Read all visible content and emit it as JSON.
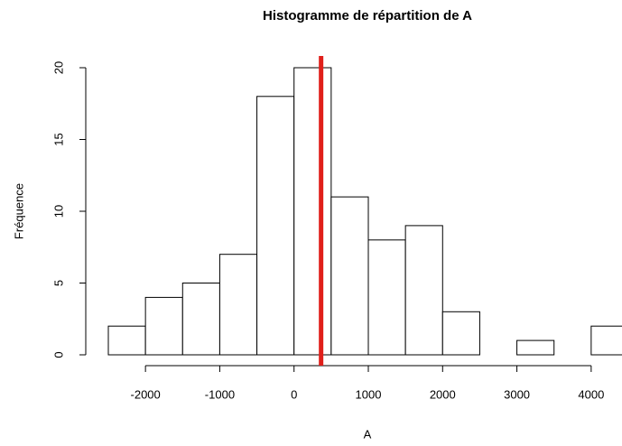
{
  "chart_data": {
    "type": "histogram",
    "title": "Histogramme de répartition de A",
    "x_label": "A",
    "y_label": "Fréquence",
    "bins": [
      -2500,
      -2000,
      -1500,
      -1000,
      -500,
      0,
      500,
      1000,
      1500,
      2000,
      2500,
      3000,
      3500,
      4000,
      4500
    ],
    "values": [
      2,
      4,
      5,
      7,
      18,
      20,
      11,
      8,
      9,
      3,
      0,
      1,
      0,
      2
    ],
    "color": "#ffffff",
    "edge_color": "#000000",
    "xlim": [
      -2500,
      4500
    ],
    "xticks": [
      -2000,
      -1000,
      0,
      1000,
      2000,
      3000,
      4000
    ],
    "ylim": [
      0,
      20
    ],
    "yticks": [
      0,
      5,
      10,
      15,
      20
    ],
    "vline": {
      "value": 364,
      "color": "#e0201b"
    }
  }
}
